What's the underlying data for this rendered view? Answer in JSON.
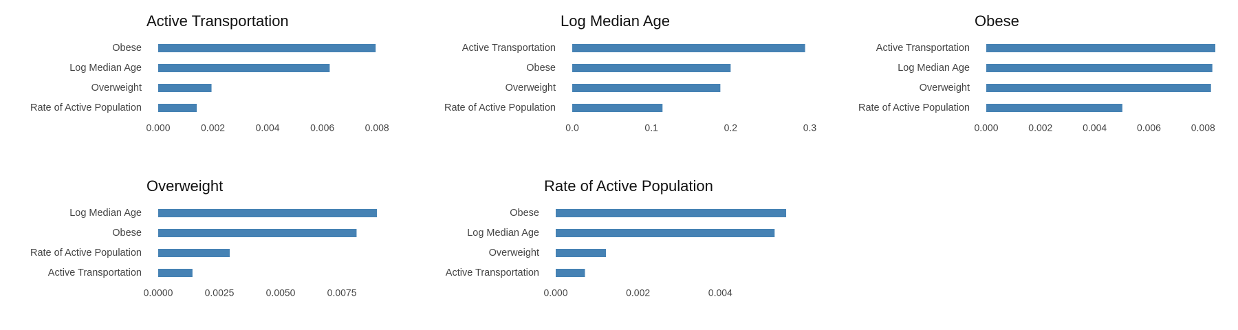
{
  "colors": {
    "bar": "#4682b4",
    "text": "#444444",
    "title": "#111111"
  },
  "chart_data": [
    {
      "type": "bar",
      "orientation": "horizontal",
      "title": "Active Transportation",
      "categories": [
        "Obese",
        "Log Median Age",
        "Overweight",
        "Rate of Active Population"
      ],
      "values": [
        0.00795,
        0.00627,
        0.00195,
        0.00141
      ],
      "xlim": [
        0,
        0.0088
      ],
      "xticks": [
        0,
        0.002,
        0.004,
        0.006,
        0.008
      ],
      "xtick_labels": [
        "0.000",
        "0.002",
        "0.004",
        "0.006",
        "0.008"
      ]
    },
    {
      "type": "bar",
      "orientation": "horizontal",
      "title": "Log Median Age",
      "categories": [
        "Active Transportation",
        "Obese",
        "Overweight",
        "Rate of Active Population"
      ],
      "values": [
        0.294,
        0.2,
        0.187,
        0.114
      ],
      "xlim": [
        0,
        0.31
      ],
      "xticks": [
        0,
        0.1,
        0.2,
        0.3
      ],
      "xtick_labels": [
        "0.0",
        "0.1",
        "0.2",
        "0.3"
      ]
    },
    {
      "type": "bar",
      "orientation": "horizontal",
      "title": "Obese",
      "categories": [
        "Active Transportation",
        "Log Median Age",
        "Overweight",
        "Rate of Active Population"
      ],
      "values": [
        0.00845,
        0.00834,
        0.00829,
        0.00502
      ],
      "xlim": [
        0,
        0.0085
      ],
      "xticks": [
        0,
        0.002,
        0.004,
        0.006,
        0.008
      ],
      "xtick_labels": [
        "0.000",
        "0.002",
        "0.004",
        "0.006",
        "0.008"
      ]
    },
    {
      "type": "bar",
      "orientation": "horizontal",
      "title": "Overweight",
      "categories": [
        "Log Median Age",
        "Obese",
        "Rate of Active Population",
        "Active Transportation"
      ],
      "values": [
        0.00893,
        0.0081,
        0.00292,
        0.0014
      ],
      "xlim": [
        0,
        0.0098
      ],
      "xticks": [
        0,
        0.0025,
        0.005,
        0.0075
      ],
      "xtick_labels": [
        "0.0000",
        "0.0025",
        "0.0050",
        "0.0075"
      ]
    },
    {
      "type": "bar",
      "orientation": "horizontal",
      "title": "Rate of Active Population",
      "categories": [
        "Obese",
        "Log Median Age",
        "Overweight",
        "Active Transportation"
      ],
      "values": [
        0.0056,
        0.00532,
        0.00122,
        0.00071
      ],
      "xlim": [
        0,
        0.0058
      ],
      "xticks": [
        0,
        0.002,
        0.004
      ],
      "xtick_labels": [
        "0.000",
        "0.002",
        "0.004"
      ]
    }
  ]
}
